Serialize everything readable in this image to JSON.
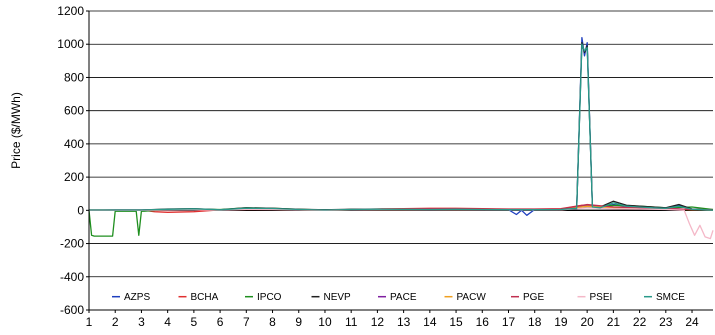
{
  "chart_data": {
    "type": "line",
    "ylabel": "Price ($/MWh)",
    "xlabel": "",
    "ylim": [
      -600,
      1200
    ],
    "yticks": [
      1200,
      1000,
      800,
      600,
      400,
      200,
      0,
      -200,
      -400,
      -600
    ],
    "xlim": [
      1,
      24.8
    ],
    "xticks": [
      1,
      2,
      3,
      4,
      5,
      6,
      7,
      8,
      9,
      10,
      11,
      12,
      13,
      14,
      15,
      16,
      17,
      18,
      19,
      20,
      21,
      22,
      23,
      24
    ],
    "grid": "horizontal",
    "legend_position": "bottom-inside",
    "series": [
      {
        "name": "AZPS",
        "color": "#1f3fbf",
        "x": [
          1,
          2,
          3,
          4,
          5,
          6,
          7,
          8,
          9,
          10,
          11,
          12,
          13,
          14,
          15,
          16,
          17,
          17.3,
          17.5,
          17.7,
          18,
          18.5,
          19,
          19.6,
          19.8,
          19.9,
          20,
          20.2,
          20.5,
          21,
          21.5,
          22,
          22.5,
          23,
          23.5,
          24,
          24.8
        ],
        "y": [
          0,
          2,
          2,
          5,
          8,
          2,
          12,
          10,
          4,
          2,
          5,
          7,
          6,
          5,
          6,
          5,
          4,
          -25,
          0,
          -30,
          5,
          3,
          5,
          10,
          1040,
          930,
          1010,
          20,
          15,
          35,
          25,
          20,
          15,
          10,
          30,
          5,
          0
        ]
      },
      {
        "name": "BCHA",
        "color": "#e03030",
        "x": [
          1,
          2,
          3,
          3.5,
          4,
          5,
          6,
          7,
          8,
          9,
          10,
          11,
          12,
          13,
          14,
          15,
          16,
          17,
          18,
          19,
          19.8,
          20,
          21,
          22,
          23,
          24,
          24.8
        ],
        "y": [
          2,
          2,
          2,
          -8,
          -12,
          -8,
          3,
          5,
          5,
          3,
          0,
          5,
          8,
          10,
          12,
          12,
          10,
          8,
          8,
          10,
          30,
          25,
          15,
          10,
          8,
          5,
          5
        ]
      },
      {
        "name": "IPCO",
        "color": "#1f8f1f",
        "x": [
          1,
          1.1,
          1.2,
          1.9,
          2,
          2.8,
          2.9,
          3,
          3.1,
          4,
          5,
          6,
          7,
          8,
          9,
          10,
          11,
          12,
          13,
          14,
          15,
          16,
          17,
          18,
          19,
          20,
          21,
          22,
          23,
          24,
          24.8
        ],
        "y": [
          0,
          -150,
          -155,
          -155,
          -5,
          -5,
          -150,
          -5,
          -5,
          5,
          8,
          5,
          15,
          12,
          6,
          2,
          5,
          6,
          6,
          5,
          6,
          5,
          5,
          4,
          5,
          20,
          30,
          25,
          15,
          20,
          5
        ]
      },
      {
        "name": "NEVP",
        "color": "#202020",
        "x": [
          1,
          2,
          3,
          4,
          5,
          6,
          7,
          8,
          9,
          10,
          11,
          12,
          13,
          14,
          15,
          16,
          17,
          18,
          19,
          19.6,
          19.8,
          19.9,
          20,
          20.2,
          20.5,
          21,
          21.5,
          22,
          22.5,
          23,
          23.5,
          24,
          24.8
        ],
        "y": [
          2,
          2,
          2,
          8,
          10,
          3,
          15,
          12,
          6,
          3,
          6,
          8,
          7,
          6,
          7,
          6,
          5,
          5,
          6,
          15,
          1010,
          950,
          990,
          25,
          20,
          55,
          30,
          25,
          20,
          15,
          35,
          8,
          2
        ]
      },
      {
        "name": "PACE",
        "color": "#7f1fa0",
        "x": [
          1,
          2,
          3,
          4,
          5,
          6,
          7,
          8,
          9,
          10,
          11,
          12,
          13,
          14,
          15,
          16,
          17,
          18,
          19,
          20,
          21,
          22,
          23,
          24,
          24.8
        ],
        "y": [
          1,
          1,
          1,
          4,
          6,
          2,
          10,
          8,
          4,
          1,
          4,
          5,
          5,
          4,
          5,
          4,
          3,
          4,
          5,
          30,
          20,
          15,
          12,
          5,
          1
        ]
      },
      {
        "name": "PACW",
        "color": "#f0a020",
        "x": [
          1,
          2,
          3,
          4,
          5,
          6,
          7,
          8,
          9,
          10,
          11,
          12,
          13,
          14,
          15,
          16,
          17,
          18,
          19,
          20,
          21,
          22,
          23,
          24,
          24.8
        ],
        "y": [
          1,
          1,
          1,
          3,
          5,
          2,
          8,
          7,
          3,
          1,
          3,
          4,
          4,
          3,
          4,
          3,
          3,
          3,
          4,
          25,
          15,
          12,
          10,
          4,
          1
        ]
      },
      {
        "name": "PGE",
        "color": "#c03050",
        "x": [
          1,
          2,
          3,
          4,
          5,
          6,
          7,
          8,
          9,
          10,
          11,
          12,
          13,
          14,
          15,
          16,
          17,
          18,
          19,
          20,
          21,
          22,
          23,
          24,
          24.8
        ],
        "y": [
          1,
          1,
          1,
          3,
          6,
          2,
          9,
          8,
          3,
          1,
          4,
          6,
          8,
          10,
          10,
          8,
          6,
          6,
          8,
          35,
          20,
          15,
          10,
          5,
          2
        ]
      },
      {
        "name": "PSEI",
        "color": "#f4b8c8",
        "x": [
          1,
          2,
          3,
          4,
          5,
          6,
          7,
          8,
          9,
          10,
          11,
          12,
          13,
          14,
          15,
          16,
          17,
          18,
          19,
          20,
          21,
          22,
          23,
          23.7,
          23.9,
          24.1,
          24.3,
          24.5,
          24.7,
          24.8
        ],
        "y": [
          1,
          1,
          1,
          2,
          4,
          1,
          6,
          5,
          2,
          0,
          3,
          4,
          4,
          3,
          4,
          3,
          2,
          2,
          3,
          15,
          10,
          8,
          5,
          0,
          -80,
          -150,
          -90,
          -160,
          -170,
          -120
        ]
      },
      {
        "name": "SMCE",
        "color": "#2a9a8a",
        "x": [
          1,
          2,
          3,
          4,
          5,
          6,
          7,
          8,
          9,
          10,
          11,
          12,
          13,
          14,
          15,
          16,
          17,
          18,
          19,
          19.6,
          19.8,
          19.9,
          20,
          20.2,
          20.5,
          21,
          21.5,
          22,
          22.5,
          23,
          23.5,
          24,
          24.8
        ],
        "y": [
          2,
          2,
          2,
          6,
          9,
          3,
          13,
          11,
          5,
          2,
          5,
          7,
          6,
          5,
          6,
          5,
          4,
          4,
          5,
          12,
          1000,
          960,
          980,
          20,
          15,
          45,
          25,
          20,
          15,
          12,
          25,
          6,
          1
        ]
      }
    ]
  }
}
